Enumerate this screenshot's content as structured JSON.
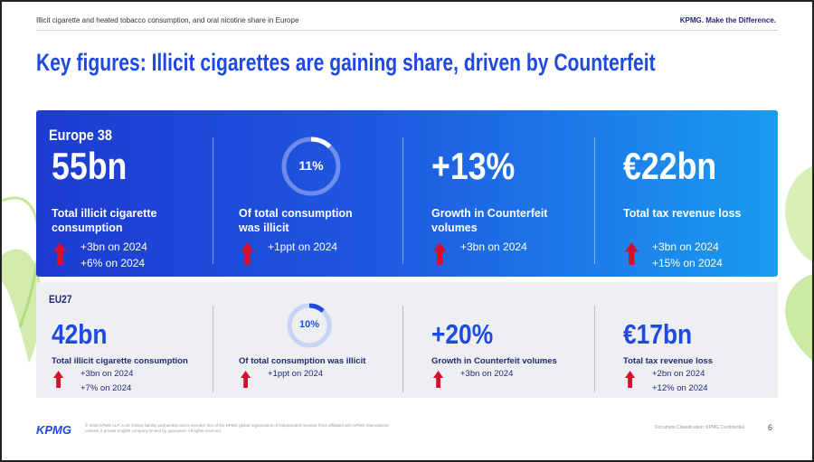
{
  "header": {
    "left": "Illicit cigarette and heated tobacco consumption, and oral nicotine share in Europe",
    "right": "KPMG. Make the Difference."
  },
  "title": "Key figures: Illicit cigarettes are gaining share, driven by Counterfeit",
  "panels": [
    {
      "label": "Europe 38",
      "cards": [
        {
          "value": "55bn",
          "description": "Total illicit cigarette consumption",
          "changes": [
            "+3bn on 2024",
            "+6% on 2024"
          ]
        },
        {
          "ring": "11%",
          "description": "Of total consumption was illicit",
          "changes": [
            "+1ppt on 2024"
          ]
        },
        {
          "value": "+13%",
          "description": "Growth in Counterfeit volumes",
          "changes": [
            "+3bn on 2024"
          ]
        },
        {
          "value": "€22bn",
          "description": "Total tax revenue loss",
          "changes": [
            "+3bn on 2024",
            "+15% on 2024"
          ]
        }
      ]
    },
    {
      "label": "EU27",
      "cards": [
        {
          "value": "42bn",
          "description": "Total illicit cigarette consumption",
          "changes": [
            "+3bn on 2024",
            "+7% on 2024"
          ]
        },
        {
          "ring": "10%",
          "description": "Of total consumption was illicit",
          "changes": [
            "+1ppt on 2024"
          ]
        },
        {
          "value": "+20%",
          "description": "Growth in Counterfeit volumes",
          "changes": [
            "+3bn on 2024"
          ]
        },
        {
          "value": "€17bn",
          "description": "Total tax revenue loss",
          "changes": [
            "+2bn on 2024",
            "+12% on 2024"
          ]
        }
      ]
    }
  ],
  "footer": {
    "logo": "KPMG",
    "legal": "© 2025 KPMG LLP, a UK limited liability partnership and a member firm of the KPMG global organisation of independent member firms affiliated with KPMG International Limited, a private English company limited by guarantee. All rights reserved.",
    "classification": "Document Classification: KPMG Confidential",
    "page": "6"
  }
}
